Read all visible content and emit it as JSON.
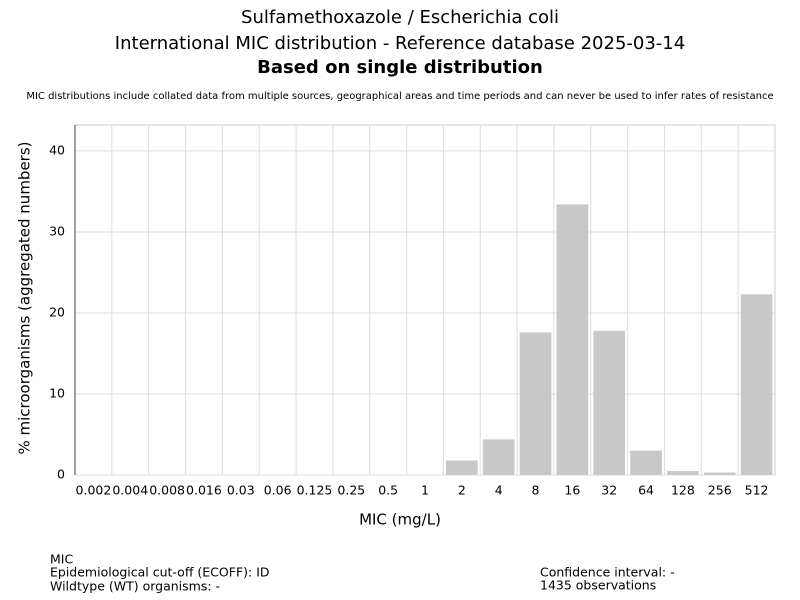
{
  "chart_data": {
    "type": "bar",
    "title": "Sulfamethoxazole / Escherichia coli",
    "subtitle": "International MIC distribution - Reference database 2025-03-14",
    "heading": "Based on single distribution",
    "note": "MIC distributions include collated data from multiple sources, geographical areas and time periods and can never be used to infer rates of resistance",
    "x_label": "MIC (mg/L)",
    "y_label": "% microorganisms (aggregated numbers)",
    "categories": [
      "0.002",
      "0.004",
      "0.008",
      "0.016",
      "0.03",
      "0.06",
      "0.125",
      "0.25",
      "0.5",
      "1",
      "2",
      "4",
      "8",
      "16",
      "32",
      "64",
      "128",
      "256",
      "512"
    ],
    "values": [
      0,
      0,
      0,
      0,
      0,
      0,
      0,
      0,
      0,
      0,
      1.8,
      4.4,
      17.6,
      33.4,
      17.8,
      3.0,
      0.5,
      0.3,
      22.3
    ],
    "color": "#c8c8c8",
    "ylim": [
      0,
      43.2
    ],
    "yticks": [
      0,
      10,
      20,
      30,
      40
    ],
    "grid": true,
    "footer_left": [
      "MIC",
      "Epidemiological cut-off (ECOFF): ID",
      "Wildtype (WT) organisms:  -"
    ],
    "footer_right": [
      "Confidence interval: -",
      "1435 observations"
    ]
  }
}
